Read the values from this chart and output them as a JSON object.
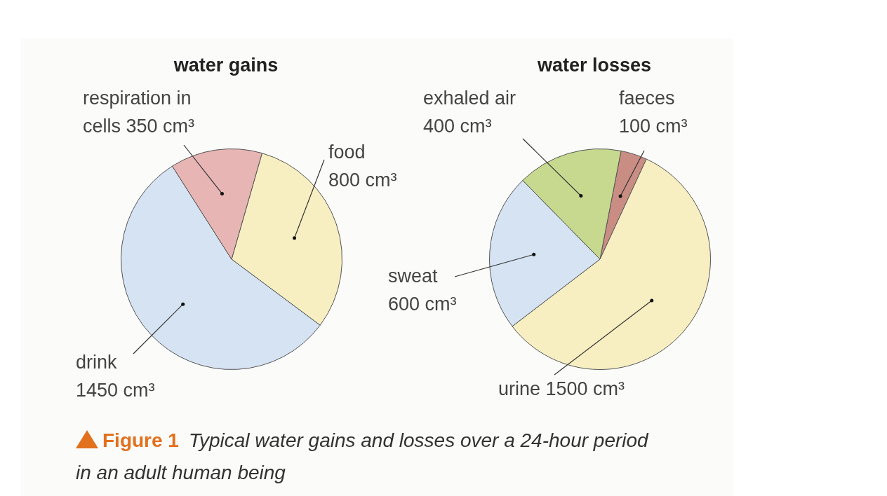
{
  "chart_data": [
    {
      "type": "pie",
      "title": "water gains",
      "categories": [
        "food",
        "drink",
        "respiration in cells"
      ],
      "values": [
        800,
        1450,
        350
      ],
      "value_labels": [
        "800 cm³",
        "1450 cm³",
        "350 cm³"
      ],
      "colors": [
        "#f7efc2",
        "#d5e3f2",
        "#e8b5b5"
      ],
      "annotations": [
        "Figure 1",
        "Typical water gains and losses over a 24-hour period in an adult human being"
      ]
    },
    {
      "type": "pie",
      "title": "water losses",
      "categories": [
        "faeces",
        "urine",
        "sweat",
        "exhaled air"
      ],
      "values": [
        100,
        1500,
        600,
        400
      ],
      "value_labels": [
        "100 cm³",
        "1500 cm³",
        "600 cm³",
        "400 cm³"
      ],
      "colors": [
        "#c98d83",
        "#f7efc2",
        "#d5e3f2",
        "#c6d98f"
      ]
    }
  ]
}
